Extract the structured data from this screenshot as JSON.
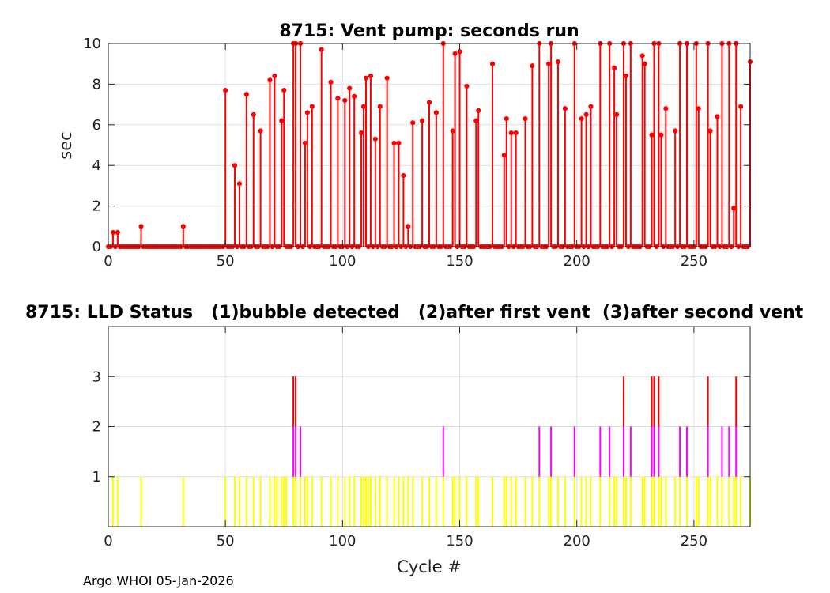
{
  "footer": "Argo WHOI 05-Jan-2026",
  "chart_data": [
    {
      "type": "stem",
      "title": "8715: Vent pump: seconds run",
      "xlabel": "",
      "ylabel": "sec",
      "xlim": [
        0,
        274
      ],
      "ylim": [
        0,
        10
      ],
      "xticks": [
        0,
        50,
        100,
        150,
        200,
        250
      ],
      "yticks": [
        0,
        2,
        4,
        6,
        8,
        10
      ],
      "grid": true,
      "color": "#ff0000",
      "points": [
        [
          0,
          0
        ],
        [
          1,
          0
        ],
        [
          2,
          0.7
        ],
        [
          3,
          0
        ],
        [
          4,
          0.7
        ],
        [
          5,
          0
        ],
        [
          6,
          0
        ],
        [
          7,
          0
        ],
        [
          8,
          0
        ],
        [
          9,
          0
        ],
        [
          10,
          0
        ],
        [
          11,
          0
        ],
        [
          12,
          0
        ],
        [
          13,
          0
        ],
        [
          14,
          1
        ],
        [
          15,
          0
        ],
        [
          16,
          0
        ],
        [
          17,
          0
        ],
        [
          18,
          0
        ],
        [
          19,
          0
        ],
        [
          20,
          0
        ],
        [
          21,
          0
        ],
        [
          22,
          0
        ],
        [
          23,
          0
        ],
        [
          24,
          0
        ],
        [
          25,
          0
        ],
        [
          26,
          0
        ],
        [
          27,
          0
        ],
        [
          28,
          0
        ],
        [
          29,
          0
        ],
        [
          30,
          0
        ],
        [
          31,
          0
        ],
        [
          32,
          1
        ],
        [
          33,
          0
        ],
        [
          34,
          0
        ],
        [
          35,
          0
        ],
        [
          36,
          0
        ],
        [
          37,
          0
        ],
        [
          38,
          0
        ],
        [
          39,
          0
        ],
        [
          40,
          0
        ],
        [
          41,
          0
        ],
        [
          42,
          0
        ],
        [
          43,
          0
        ],
        [
          44,
          0
        ],
        [
          45,
          0
        ],
        [
          46,
          0
        ],
        [
          47,
          0
        ],
        [
          48,
          0
        ],
        [
          49,
          0
        ],
        [
          50,
          7.7
        ],
        [
          51,
          0
        ],
        [
          52,
          0
        ],
        [
          53,
          0
        ],
        [
          54,
          4
        ],
        [
          55,
          0
        ],
        [
          56,
          3.1
        ],
        [
          57,
          0
        ],
        [
          58,
          0
        ],
        [
          59,
          7.5
        ],
        [
          60,
          0
        ],
        [
          61,
          0
        ],
        [
          62,
          6.5
        ],
        [
          63,
          0
        ],
        [
          64,
          0
        ],
        [
          65,
          5.7
        ],
        [
          66,
          0
        ],
        [
          67,
          0
        ],
        [
          68,
          0
        ],
        [
          69,
          8.2
        ],
        [
          70,
          0
        ],
        [
          71,
          8.4
        ],
        [
          72,
          0
        ],
        [
          73,
          0
        ],
        [
          74,
          6.2
        ],
        [
          75,
          7.7
        ],
        [
          76,
          0
        ],
        [
          77,
          0
        ],
        [
          78,
          0
        ],
        [
          79,
          10
        ],
        [
          80,
          10
        ],
        [
          81,
          0
        ],
        [
          82,
          10
        ],
        [
          83,
          0
        ],
        [
          84,
          5.1
        ],
        [
          85,
          6.6
        ],
        [
          86,
          0
        ],
        [
          87,
          6.9
        ],
        [
          88,
          0
        ],
        [
          89,
          0
        ],
        [
          90,
          0
        ],
        [
          91,
          9.7
        ],
        [
          92,
          0
        ],
        [
          93,
          0
        ],
        [
          94,
          0
        ],
        [
          95,
          8.1
        ],
        [
          96,
          0
        ],
        [
          97,
          0
        ],
        [
          98,
          7.3
        ],
        [
          99,
          0
        ],
        [
          100,
          0
        ],
        [
          101,
          7.2
        ],
        [
          102,
          0
        ],
        [
          103,
          7.8
        ],
        [
          104,
          0
        ],
        [
          105,
          7.4
        ],
        [
          106,
          0
        ],
        [
          107,
          0
        ],
        [
          108,
          5.6
        ],
        [
          109,
          6.9
        ],
        [
          110,
          8.3
        ],
        [
          111,
          0
        ],
        [
          112,
          8.4
        ],
        [
          113,
          0
        ],
        [
          114,
          5.3
        ],
        [
          115,
          0
        ],
        [
          116,
          6.9
        ],
        [
          117,
          0
        ],
        [
          118,
          0
        ],
        [
          119,
          8.3
        ],
        [
          120,
          0
        ],
        [
          121,
          0
        ],
        [
          122,
          5.1
        ],
        [
          123,
          0
        ],
        [
          124,
          5.1
        ],
        [
          125,
          0
        ],
        [
          126,
          3.5
        ],
        [
          127,
          0
        ],
        [
          128,
          1
        ],
        [
          129,
          0
        ],
        [
          130,
          6.1
        ],
        [
          131,
          0
        ],
        [
          132,
          0
        ],
        [
          133,
          0
        ],
        [
          134,
          6.2
        ],
        [
          135,
          0
        ],
        [
          136,
          0
        ],
        [
          137,
          7.1
        ],
        [
          138,
          0
        ],
        [
          139,
          0
        ],
        [
          140,
          6.6
        ],
        [
          141,
          0
        ],
        [
          142,
          0
        ],
        [
          143,
          10
        ],
        [
          144,
          0
        ],
        [
          145,
          0
        ],
        [
          146,
          0
        ],
        [
          147,
          5.7
        ],
        [
          148,
          9.5
        ],
        [
          149,
          0
        ],
        [
          150,
          9.6
        ],
        [
          151,
          0
        ],
        [
          152,
          0
        ],
        [
          153,
          7.9
        ],
        [
          154,
          0
        ],
        [
          155,
          0
        ],
        [
          156,
          0
        ],
        [
          157,
          6.2
        ],
        [
          158,
          6.7
        ],
        [
          159,
          0
        ],
        [
          160,
          0
        ],
        [
          161,
          0
        ],
        [
          162,
          0
        ],
        [
          163,
          0
        ],
        [
          164,
          9
        ],
        [
          165,
          0
        ],
        [
          166,
          0
        ],
        [
          167,
          0
        ],
        [
          168,
          0
        ],
        [
          169,
          4.5
        ],
        [
          170,
          6.3
        ],
        [
          171,
          0
        ],
        [
          172,
          5.6
        ],
        [
          173,
          0
        ],
        [
          174,
          5.6
        ],
        [
          175,
          0
        ],
        [
          176,
          0
        ],
        [
          177,
          0
        ],
        [
          178,
          6.3
        ],
        [
          179,
          0
        ],
        [
          180,
          0
        ],
        [
          181,
          8.9
        ],
        [
          182,
          0
        ],
        [
          183,
          0
        ],
        [
          184,
          10
        ],
        [
          185,
          0
        ],
        [
          186,
          0
        ],
        [
          187,
          0
        ],
        [
          188,
          9
        ],
        [
          189,
          10
        ],
        [
          190,
          0
        ],
        [
          191,
          0
        ],
        [
          192,
          9.1
        ],
        [
          193,
          0
        ],
        [
          194,
          0
        ],
        [
          195,
          6.8
        ],
        [
          196,
          0
        ],
        [
          197,
          0
        ],
        [
          198,
          0
        ],
        [
          199,
          10
        ],
        [
          200,
          0
        ],
        [
          201,
          0
        ],
        [
          202,
          6.3
        ],
        [
          203,
          0
        ],
        [
          204,
          6.5
        ],
        [
          205,
          0
        ],
        [
          206,
          6.9
        ],
        [
          207,
          0
        ],
        [
          208,
          0
        ],
        [
          209,
          0
        ],
        [
          210,
          10
        ],
        [
          211,
          0
        ],
        [
          212,
          0
        ],
        [
          213,
          0
        ],
        [
          214,
          10
        ],
        [
          215,
          0
        ],
        [
          216,
          8.8
        ],
        [
          217,
          6.5
        ],
        [
          218,
          0
        ],
        [
          219,
          0
        ],
        [
          220,
          10
        ],
        [
          221,
          8.4
        ],
        [
          222,
          0
        ],
        [
          223,
          10
        ],
        [
          224,
          0
        ],
        [
          225,
          0
        ],
        [
          226,
          0
        ],
        [
          227,
          0
        ],
        [
          228,
          9.4
        ],
        [
          229,
          9
        ],
        [
          230,
          0
        ],
        [
          231,
          0
        ],
        [
          232,
          5.5
        ],
        [
          233,
          10
        ],
        [
          234,
          0
        ],
        [
          235,
          10
        ],
        [
          236,
          5.5
        ],
        [
          237,
          0
        ],
        [
          238,
          6.8
        ],
        [
          239,
          0
        ],
        [
          240,
          0
        ],
        [
          241,
          0
        ],
        [
          242,
          5.7
        ],
        [
          243,
          0
        ],
        [
          244,
          10
        ],
        [
          245,
          0
        ],
        [
          246,
          0
        ],
        [
          247,
          10
        ],
        [
          248,
          0
        ],
        [
          249,
          0
        ],
        [
          250,
          0
        ],
        [
          251,
          10
        ],
        [
          252,
          6.8
        ],
        [
          253,
          0
        ],
        [
          254,
          0
        ],
        [
          255,
          0
        ],
        [
          256,
          10
        ],
        [
          257,
          5.7
        ],
        [
          258,
          0
        ],
        [
          259,
          0
        ],
        [
          260,
          6.4
        ],
        [
          261,
          0
        ],
        [
          262,
          10
        ],
        [
          263,
          0
        ],
        [
          264,
          0
        ],
        [
          265,
          10
        ],
        [
          266,
          0
        ],
        [
          267,
          1.9
        ],
        [
          268,
          10
        ],
        [
          269,
          0
        ],
        [
          270,
          6.9
        ],
        [
          271,
          0
        ],
        [
          272,
          0
        ],
        [
          273,
          0
        ],
        [
          274,
          9.1
        ]
      ]
    },
    {
      "type": "status-bars",
      "title": "8715: LLD Status   (1)bubble detected   (2)after first vent  (3)after second vent",
      "xlabel": "Cycle #",
      "ylabel": "",
      "xlim": [
        0,
        274
      ],
      "ylim": [
        0,
        4
      ],
      "xticks": [
        0,
        50,
        100,
        150,
        200,
        250
      ],
      "yticks": [
        1,
        2,
        3
      ],
      "grid": true,
      "series": [
        {
          "color": "#ffff00",
          "value": 1,
          "x": [
            2,
            4,
            14,
            32,
            50,
            54,
            56,
            59,
            62,
            65,
            69,
            71,
            72,
            74,
            75,
            76,
            79,
            80,
            82,
            84,
            85,
            87,
            91,
            95,
            98,
            101,
            103,
            105,
            108,
            109,
            110,
            111,
            112,
            114,
            116,
            119,
            122,
            124,
            126,
            128,
            130,
            134,
            137,
            140,
            143,
            147,
            148,
            150,
            153,
            157,
            158,
            164,
            169,
            170,
            172,
            174,
            178,
            181,
            184,
            188,
            189,
            192,
            195,
            199,
            202,
            204,
            206,
            210,
            214,
            216,
            217,
            220,
            221,
            223,
            228,
            229,
            232,
            233,
            235,
            236,
            238,
            242,
            244,
            247,
            251,
            252,
            256,
            257,
            260,
            262,
            265,
            267,
            268,
            270,
            274
          ]
        },
        {
          "color": "#ff00ff",
          "value": 2,
          "x": [
            79,
            80,
            82,
            143,
            184,
            189,
            199,
            210,
            214,
            220,
            223,
            232,
            233,
            235,
            244,
            247,
            256,
            262,
            265,
            268
          ]
        },
        {
          "color": "#ff0000",
          "value": 3,
          "x": [
            79,
            80,
            220,
            232,
            233,
            235,
            256,
            268
          ]
        }
      ]
    }
  ]
}
